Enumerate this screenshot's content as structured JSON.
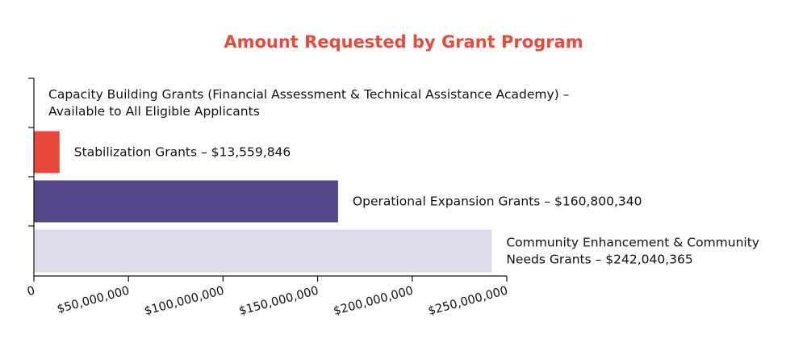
{
  "chart_data": {
    "type": "bar",
    "orientation": "horizontal",
    "title": "Amount Requested by Grant Program",
    "xlabel": "",
    "ylabel": "",
    "xlim": [
      0,
      250000000
    ],
    "grid": false,
    "legend": "none",
    "bars": [
      {
        "category": "Capacity Building Grants (Financial Assessment & Technical Assistance Academy)",
        "value": 0,
        "label_lines": [
          "Capacity Building Grants (Financial Assessment & Technical Assistance Academy) –",
          "Available to All Eligible Applicants"
        ],
        "color": "#e8493a"
      },
      {
        "category": "Stabilization Grants",
        "value": 13559846,
        "label_lines": [
          "Stabilization Grants – $13,559,846"
        ],
        "color": "#e8493a"
      },
      {
        "category": "Operational Expansion Grants",
        "value": 160800340,
        "label_lines": [
          "Operational Expansion Grants  – $160,800,340"
        ],
        "color": "#554687"
      },
      {
        "category": "Community Enhancement & Community Needs Grants",
        "value": 242040365,
        "label_lines": [
          "Community Enhancement & Community",
          "Needs Grants – $242,040,365"
        ],
        "color": "#dddbec"
      }
    ],
    "x_ticks": [
      {
        "value": 0,
        "label": "0"
      },
      {
        "value": 50000000,
        "label": "$50,000,000"
      },
      {
        "value": 100000000,
        "label": "$100,000,000"
      },
      {
        "value": 150000000,
        "label": "$150,000,000"
      },
      {
        "value": 200000000,
        "label": "$200,000,000"
      },
      {
        "value": 250000000,
        "label": "$250,000,000"
      }
    ],
    "colors": {
      "title": "#e8493a",
      "axis": "#111111",
      "text": "#111111"
    }
  }
}
